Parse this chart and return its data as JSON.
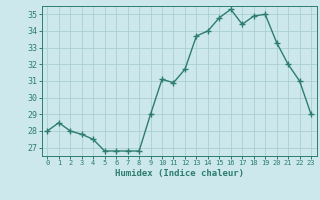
{
  "x": [
    0,
    1,
    2,
    3,
    4,
    5,
    6,
    7,
    8,
    9,
    10,
    11,
    12,
    13,
    14,
    15,
    16,
    17,
    18,
    19,
    20,
    21,
    22,
    23
  ],
  "y": [
    28.0,
    28.5,
    28.0,
    27.8,
    27.5,
    26.8,
    26.8,
    26.8,
    26.8,
    29.0,
    31.1,
    30.9,
    31.7,
    33.7,
    34.0,
    34.8,
    35.3,
    34.4,
    34.9,
    35.0,
    33.3,
    32.0,
    31.0,
    29.0
  ],
  "xlabel": "Humidex (Indice chaleur)",
  "ylim": [
    26.5,
    35.5
  ],
  "xlim": [
    -0.5,
    23.5
  ],
  "yticks": [
    27,
    28,
    29,
    30,
    31,
    32,
    33,
    34,
    35
  ],
  "xticks": [
    0,
    1,
    2,
    3,
    4,
    5,
    6,
    7,
    8,
    9,
    10,
    11,
    12,
    13,
    14,
    15,
    16,
    17,
    18,
    19,
    20,
    21,
    22,
    23
  ],
  "line_color": "#2d7d6e",
  "marker_color": "#2d7d6e",
  "bg_color": "#cce8ec",
  "grid_color": "#aacfd4",
  "tick_color": "#2d7d6e",
  "label_color": "#2d7d6e"
}
